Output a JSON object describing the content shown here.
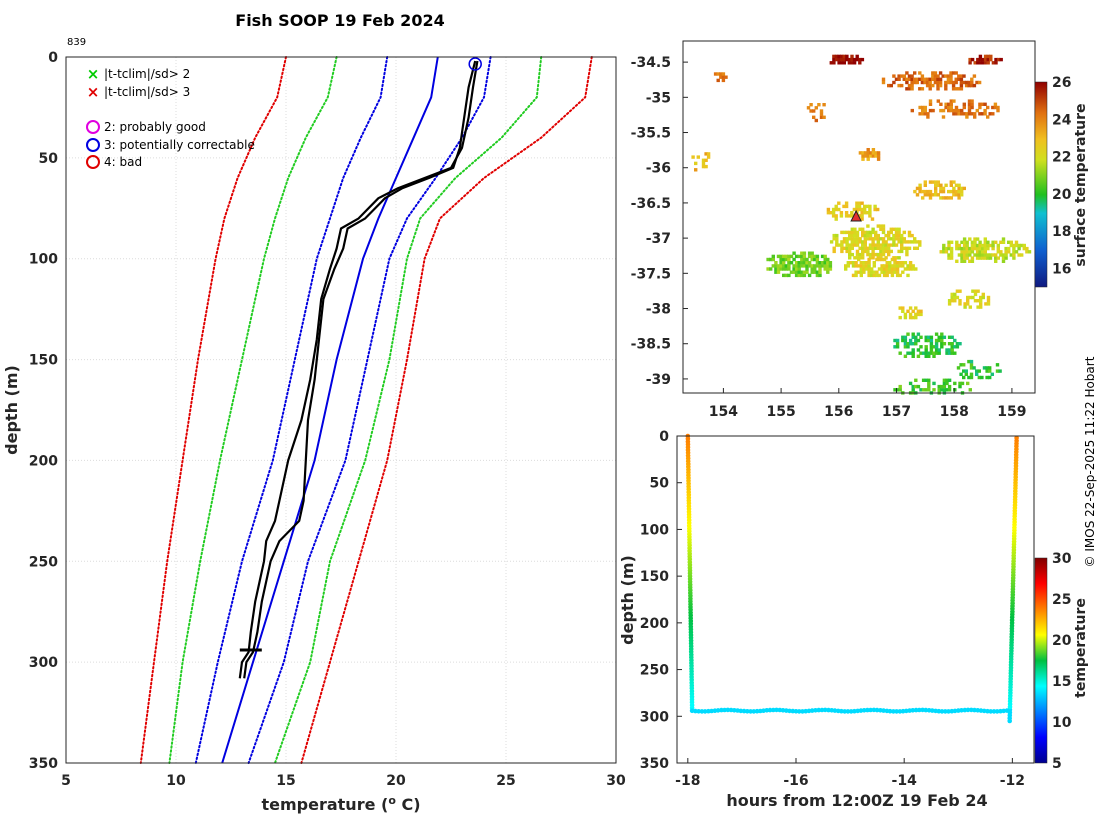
{
  "figure": {
    "title": "Fish SOOP 19 Feb 2024",
    "profile_id": "839",
    "credit": "© IMOS 22-Sep-2025 11:22 Hobart"
  },
  "legend": {
    "entries": [
      {
        "marker": "×",
        "color": "#00cc00",
        "label": "|t-tclim|/sd> 2"
      },
      {
        "marker": "×",
        "color": "#e00000",
        "label": "|t-tclim|/sd> 3"
      },
      {
        "marker": "○",
        "color": "#e000e0",
        "label": "2: probably good"
      },
      {
        "marker": "○",
        "color": "#0000e0",
        "label": "3: potentially correctable"
      },
      {
        "marker": "○",
        "color": "#e00000",
        "label": "4: bad"
      }
    ]
  },
  "chart_data": [
    {
      "id": "profile",
      "type": "line",
      "title": "Fish SOOP 19 Feb 2024",
      "xlabel": "temperature (° C)",
      "ylabel": "depth (m)",
      "xlim": [
        5,
        30
      ],
      "ylim": [
        0,
        350
      ],
      "y_reversed": true,
      "grid": true,
      "x_ticks": [
        5,
        10,
        15,
        20,
        25,
        30
      ],
      "y_ticks": [
        0,
        50,
        100,
        150,
        200,
        250,
        300,
        350
      ],
      "depth_levels": [
        0,
        20,
        40,
        60,
        80,
        100,
        150,
        200,
        250,
        300,
        350
      ],
      "series": [
        {
          "name": "clim -3sd",
          "color": "#e00000",
          "style": "dotted",
          "values": [
            15.0,
            14.6,
            13.6,
            12.8,
            12.2,
            11.8,
            11.0,
            10.3,
            9.6,
            9.0,
            8.4
          ]
        },
        {
          "name": "clim -2sd",
          "color": "#22cc22",
          "style": "dotted",
          "values": [
            17.3,
            16.9,
            15.9,
            15.1,
            14.5,
            14.0,
            13.0,
            12.0,
            11.1,
            10.3,
            9.7
          ]
        },
        {
          "name": "clim -1sd",
          "color": "#0000e0",
          "style": "dotted",
          "values": [
            19.6,
            19.3,
            18.4,
            17.6,
            17.0,
            16.4,
            15.4,
            14.4,
            13.0,
            11.9,
            10.9
          ]
        },
        {
          "name": "clim mean",
          "color": "#0000e0",
          "style": "solid",
          "values": [
            21.9,
            21.6,
            20.8,
            20.0,
            19.2,
            18.5,
            17.3,
            16.3,
            14.9,
            13.5,
            12.1
          ]
        },
        {
          "name": "clim +1sd",
          "color": "#0000e0",
          "style": "dotted",
          "values": [
            24.3,
            24.0,
            23.0,
            21.8,
            20.5,
            19.7,
            18.7,
            17.7,
            16.0,
            14.9,
            13.3
          ]
        },
        {
          "name": "clim +2sd",
          "color": "#22cc22",
          "style": "dotted",
          "values": [
            26.6,
            26.4,
            24.8,
            22.7,
            21.1,
            20.5,
            19.7,
            18.6,
            17.0,
            16.1,
            14.5
          ]
        },
        {
          "name": "clim +3sd",
          "color": "#e00000",
          "style": "dotted",
          "values": [
            28.9,
            28.6,
            26.6,
            24.0,
            22.0,
            21.3,
            20.5,
            19.6,
            18.3,
            17.0,
            15.7
          ]
        }
      ],
      "observed_profiles": [
        {
          "name": "profile A",
          "color": "#000000",
          "depth": [
            2,
            15,
            30,
            45,
            55,
            60,
            65,
            70,
            80,
            85,
            95,
            105,
            120,
            140,
            160,
            180,
            200,
            220,
            230,
            240,
            250,
            260,
            270,
            285,
            295,
            300,
            308
          ],
          "temperature": [
            23.6,
            23.3,
            23.1,
            22.9,
            22.6,
            21.5,
            20.3,
            19.5,
            18.6,
            17.8,
            17.6,
            17.2,
            16.7,
            16.5,
            16.3,
            16.0,
            15.9,
            15.8,
            15.6,
            14.7,
            14.3,
            14.1,
            13.9,
            13.7,
            13.5,
            13.2,
            13.1
          ]
        },
        {
          "name": "profile B",
          "color": "#000000",
          "depth": [
            2,
            15,
            30,
            45,
            55,
            60,
            65,
            70,
            80,
            85,
            95,
            105,
            120,
            140,
            160,
            180,
            200,
            220,
            230,
            240,
            250,
            260,
            270,
            285,
            295,
            300,
            308
          ],
          "temperature": [
            23.7,
            23.5,
            23.3,
            23.0,
            22.5,
            21.3,
            20.1,
            19.2,
            18.3,
            17.5,
            17.3,
            17.0,
            16.6,
            16.4,
            16.1,
            15.7,
            15.1,
            14.7,
            14.5,
            14.1,
            14.0,
            13.8,
            13.6,
            13.4,
            13.3,
            13.0,
            12.9
          ]
        }
      ],
      "spike_depth": 294,
      "spike_range": [
        12.9,
        13.9
      ],
      "flag_marker": {
        "flag": "3: potentially correctable",
        "temperature": 23.6,
        "depth": 2
      }
    },
    {
      "id": "sst_map",
      "type": "heatmap",
      "title": "",
      "x_ticks": [
        154,
        155,
        156,
        157,
        158,
        159
      ],
      "y_ticks": [
        -34.5,
        -35,
        -35.5,
        -36,
        -36.5,
        -37,
        -37.5,
        -38,
        -38.5,
        -39
      ],
      "xlim": [
        153.3,
        159.4
      ],
      "ylim": [
        -39.2,
        -34.2
      ],
      "colorbar": {
        "label": "surface temperature",
        "range": [
          15,
          26
        ],
        "ticks": [
          16,
          18,
          20,
          22,
          24,
          26
        ]
      },
      "station": {
        "lon": 156.3,
        "lat": -36.7,
        "marker": "triangle"
      }
    },
    {
      "id": "timeseries",
      "type": "scatter",
      "xlabel": "hours from 12:00Z 19 Feb 24",
      "ylabel": "depth (m)",
      "xlim": [
        -18.2,
        -11.6
      ],
      "ylim": [
        0,
        350
      ],
      "y_reversed": true,
      "x_ticks": [
        -18,
        -16,
        -14,
        -12
      ],
      "y_ticks": [
        0,
        50,
        100,
        150,
        200,
        250,
        300,
        350
      ],
      "colorbar": {
        "label": "temperature",
        "range": [
          5,
          30
        ],
        "ticks": [
          5,
          10,
          15,
          20,
          25,
          30
        ]
      },
      "descent": {
        "x_start": -18.0,
        "x_end": -17.92,
        "depth_start": 0,
        "depth_end": 292
      },
      "bottom": {
        "x_start": -17.92,
        "x_end": -12.05,
        "depth": 294,
        "temperature": 13.5
      },
      "ascent": {
        "x_start": -12.05,
        "x_end": -11.92,
        "depth_start": 305,
        "depth_end": 0
      }
    }
  ]
}
